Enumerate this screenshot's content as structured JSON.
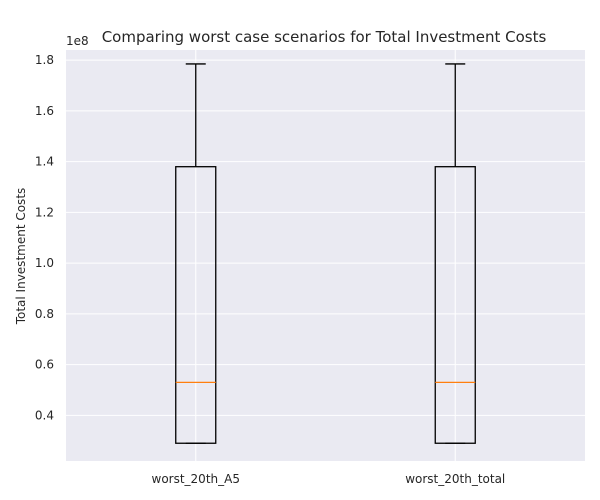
{
  "chart_data": {
    "type": "box",
    "title": "Comparing worst case scenarios for Total Investment Costs",
    "xlabel": "",
    "ylabel": "Total Investment Costs",
    "y_offset_label": "1e8",
    "ylim": [
      0.22,
      1.84
    ],
    "yticks": [
      "0.4",
      "0.6",
      "0.8",
      "1.0",
      "1.2",
      "1.4",
      "1.6",
      "1.8"
    ],
    "grid": true,
    "categories": [
      "worst_20th_A5",
      "worst_20th_total"
    ],
    "boxes": [
      {
        "name": "worst_20th_A5",
        "min": 0.29,
        "q1": 0.29,
        "median": 0.53,
        "q3": 1.38,
        "max": 1.785
      },
      {
        "name": "worst_20th_total",
        "min": 0.29,
        "q1": 0.29,
        "median": 0.53,
        "q3": 1.38,
        "max": 1.785
      }
    ],
    "colors": {
      "background": "#eaeaf2",
      "grid": "#ffffff",
      "box": "#000000",
      "median": "#ff7f0e"
    }
  }
}
